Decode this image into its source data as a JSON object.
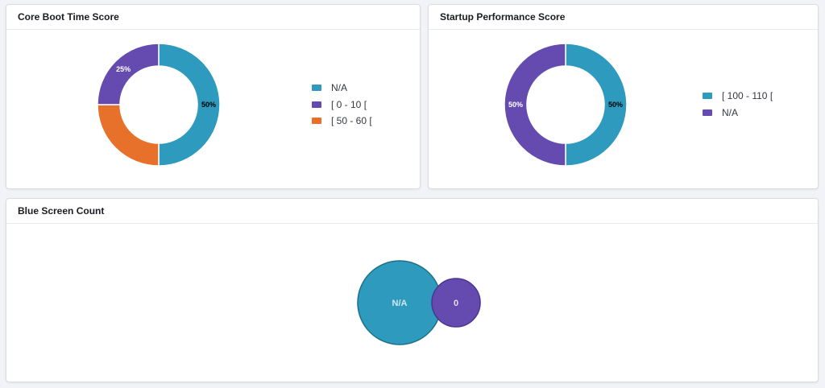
{
  "colors": {
    "blue": "#2e9abe",
    "purple": "#654bb0",
    "orange": "#e7702a"
  },
  "panels": {
    "core_boot": {
      "title": "Core Boot Time Score"
    },
    "startup": {
      "title": "Startup Performance Score"
    },
    "blue_screen": {
      "title": "Blue Screen Count"
    }
  },
  "chart_data": [
    {
      "type": "pie",
      "title": "Core Boot Time Score",
      "donut": true,
      "legend_position": "right",
      "slices": [
        {
          "label": "N/A",
          "value": 50,
          "data_label": "50%",
          "color": "#2e9abe"
        },
        {
          "label": "[ 50 - 60 [",
          "value": 25,
          "data_label": "",
          "color": "#e7702a"
        },
        {
          "label": "[ 0 - 10 [",
          "value": 25,
          "data_label": "25%",
          "color": "#654bb0"
        }
      ],
      "legend": [
        {
          "label": "N/A",
          "color": "#2e9abe"
        },
        {
          "label": "[ 0 - 10 [",
          "color": "#654bb0"
        },
        {
          "label": "[ 50 - 60 [",
          "color": "#e7702a"
        }
      ]
    },
    {
      "type": "pie",
      "title": "Startup Performance Score",
      "donut": true,
      "legend_position": "right",
      "slices": [
        {
          "label": "[ 100 - 110 [",
          "value": 50,
          "data_label": "50%",
          "color": "#2e9abe"
        },
        {
          "label": "N/A",
          "value": 50,
          "data_label": "50%",
          "color": "#654bb0"
        }
      ],
      "legend": [
        {
          "label": "[ 100 - 110 [",
          "color": "#2e9abe"
        },
        {
          "label": "N/A",
          "color": "#654bb0"
        }
      ]
    },
    {
      "type": "bubble",
      "title": "Blue Screen Count",
      "bubbles": [
        {
          "label": "N/A",
          "size": 3,
          "color": "#2e9abe"
        },
        {
          "label": "0",
          "size": 1,
          "color": "#654bb0"
        }
      ]
    }
  ]
}
